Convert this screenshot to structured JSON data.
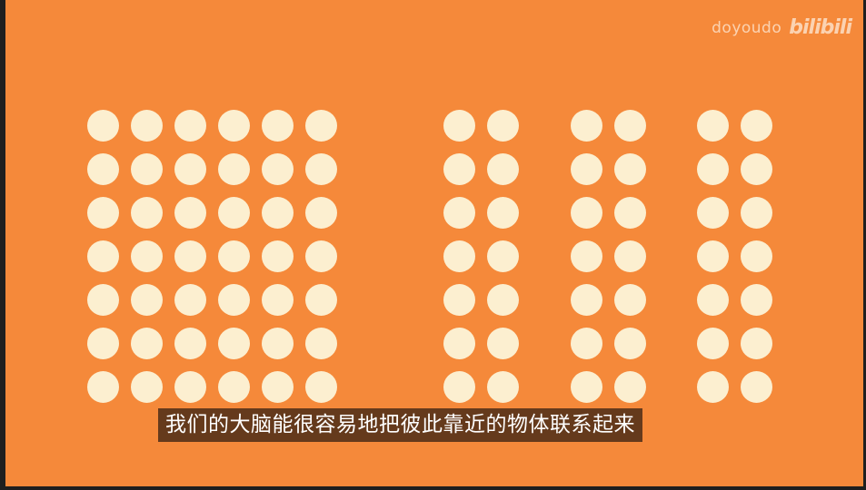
{
  "watermark": {
    "channel": "doyoudo",
    "logo": "bilibili"
  },
  "subtitle": {
    "text": "我们的大脑能很容易地把彼此靠近的物体联系起来"
  },
  "dot_groups": [
    {
      "name": "left-grid",
      "columns": 6,
      "rows": 7
    },
    {
      "name": "pair-group-1",
      "columns": 2,
      "rows": 7
    },
    {
      "name": "pair-group-2",
      "columns": 2,
      "rows": 7
    },
    {
      "name": "pair-group-3",
      "columns": 2,
      "rows": 7
    }
  ],
  "colors": {
    "background": "#f5893a",
    "dot": "#fcefd0",
    "subtitle_bg": "#46281699"
  }
}
